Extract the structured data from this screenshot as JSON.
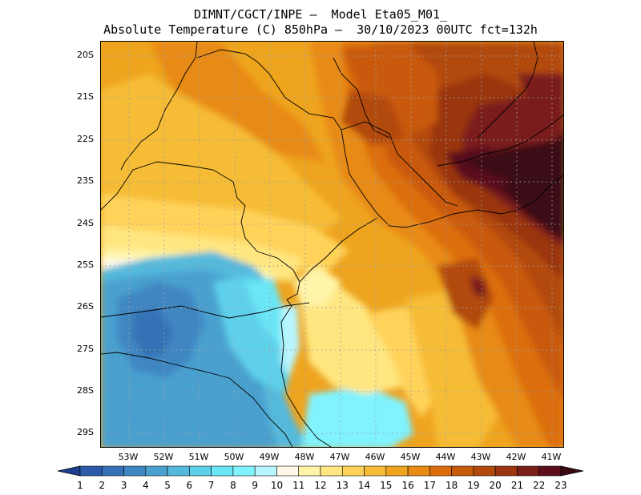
{
  "title": {
    "line1": "DIMNT/CGCT/INPE —  Model Eta05_M01_",
    "line2": "Absolute Temperature (C) 850hPa —  30/10/2023 00UTC fct=132h"
  },
  "map": {
    "lat_labels": [
      "20S",
      "21S",
      "22S",
      "23S",
      "24S",
      "25S",
      "26S",
      "27S",
      "28S",
      "29S"
    ],
    "lon_labels": [
      "53W",
      "52W",
      "51W",
      "50W",
      "49W",
      "48W",
      "47W",
      "46W",
      "45W",
      "44W",
      "43W",
      "42W",
      "41W"
    ],
    "lon_range": [
      -53.75,
      -40.6
    ],
    "lat_range": [
      -29.4,
      -19.7
    ],
    "gridlines": "dotted"
  },
  "colorbar": {
    "labels": [
      "1",
      "2",
      "3",
      "4",
      "5",
      "6",
      "7",
      "8",
      "9",
      "10",
      "11",
      "12",
      "13",
      "14",
      "15",
      "16",
      "17",
      "18",
      "19",
      "20",
      "21",
      "22",
      "23"
    ],
    "colors": [
      "#1e3f8f",
      "#2a5aa8",
      "#3572b5",
      "#3f87c2",
      "#4aa0cf",
      "#55b9dc",
      "#5fd0ea",
      "#6ae6f6",
      "#80f3ff",
      "#b8f6ff",
      "#fff8e6",
      "#fff4a8",
      "#ffe680",
      "#ffd35a",
      "#f6bc35",
      "#eea41f",
      "#e88a14",
      "#dc6e0c",
      "#c95a0a",
      "#b24a0d",
      "#9a3510",
      "#7a1e1a",
      "#5a0f1a",
      "#3a0a14"
    ],
    "extend": "both"
  }
}
